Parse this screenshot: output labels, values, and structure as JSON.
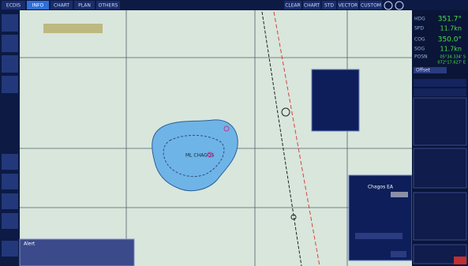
{
  "top_bar": {
    "menu": [
      "ECDIS",
      "INFO",
      "CHART",
      "PLAN",
      "OTHERS"
    ],
    "right_buttons": [
      "CLEAR",
      "CHART",
      "STD",
      "VECTOR",
      "CUSTOM"
    ]
  },
  "right_panel": {
    "rows": [
      {
        "label": "HDG",
        "value": "351.7°"
      },
      {
        "label": "SPD",
        "value": "11.7kn"
      },
      {
        "label": "COG",
        "value": "350.0°"
      },
      {
        "label": "SOG",
        "value": "11.7kn"
      }
    ],
    "posn_label": "POSN",
    "lat": "05°34.334' S",
    "lon": "072°17.627' E",
    "buttons": [
      "Offset"
    ]
  },
  "map": {
    "island_label": "ML CHAGOS"
  },
  "info_popup": {
    "title": "Chagos EA"
  },
  "alert": {
    "title": "Alert"
  }
}
